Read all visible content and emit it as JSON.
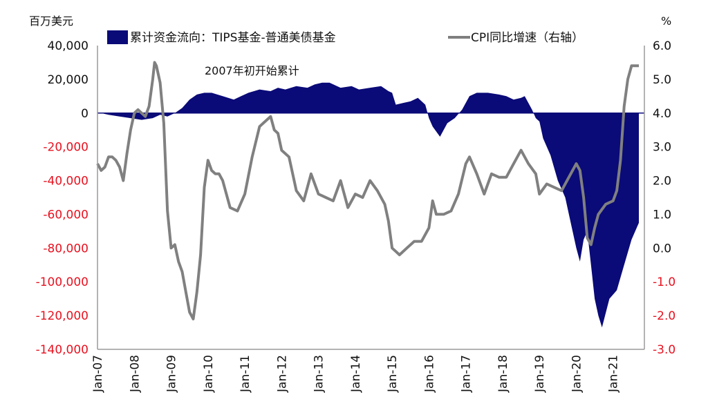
{
  "chart_data": {
    "type": "area+line",
    "left_axis_unit": "百万美元",
    "right_axis_unit": "%",
    "annotation": "2007年初开始累计",
    "left_ylim": [
      -140000,
      40000
    ],
    "right_ylim": [
      -3.0,
      6.0
    ],
    "left_ticks": [
      "40,000",
      "20,000",
      "0",
      "-20,000",
      "-40,000",
      "-60,000",
      "-80,000",
      "-100,000",
      "-120,000",
      "-140,000"
    ],
    "right_ticks": [
      "6.0",
      "5.0",
      "4.0",
      "3.0",
      "2.0",
      "1.0",
      "0.0",
      "-1.0",
      "-2.0",
      "-3.0"
    ],
    "x_ticks": [
      "Jan-07",
      "Jan-08",
      "Jan-09",
      "Jan-10",
      "Jan-11",
      "Jan-12",
      "Jan-13",
      "Jan-14",
      "Jan-15",
      "Jan-16",
      "Jan-17",
      "Jan-18",
      "Jan-19",
      "Jan-20",
      "Jan-21"
    ],
    "legend": {
      "flow": "累计资金流向：TIPS基金-普通美债基金",
      "cpi": "CPI同比增速（右轴）"
    },
    "colors": {
      "flow": "#0a0a78",
      "cpi": "#7f7f7f",
      "negative_tick": "#e8111f"
    },
    "series": [
      {
        "name": "累计资金流向：TIPS基金-普通美债基金",
        "axis": "left",
        "x": [
          2007.0,
          2007.3,
          2007.6,
          2007.9,
          2008.2,
          2008.5,
          2008.7,
          2008.9,
          2009.1,
          2009.3,
          2009.5,
          2009.7,
          2009.9,
          2010.1,
          2010.4,
          2010.7,
          2010.9,
          2011.1,
          2011.4,
          2011.7,
          2011.9,
          2012.1,
          2012.4,
          2012.7,
          2012.9,
          2013.1,
          2013.3,
          2013.6,
          2013.9,
          2014.1,
          2014.4,
          2014.7,
          2014.9,
          2015.0,
          2015.1,
          2015.3,
          2015.5,
          2015.7,
          2015.9,
          2016.0,
          2016.1,
          2016.3,
          2016.5,
          2016.7,
          2016.9,
          2017.1,
          2017.3,
          2017.6,
          2017.9,
          2018.1,
          2018.3,
          2018.5,
          2018.6,
          2018.8,
          2018.9,
          2019.0,
          2019.1,
          2019.3,
          2019.5,
          2019.7,
          2019.8,
          2020.0,
          2020.1,
          2020.2,
          2020.3,
          2020.4,
          2020.5,
          2020.6,
          2020.7,
          2020.9,
          2021.1,
          2021.3,
          2021.5,
          2021.7
        ],
        "values": [
          500,
          -1000,
          -2000,
          -3000,
          -4000,
          -3000,
          -1000,
          -2000,
          0,
          3000,
          8000,
          11000,
          12000,
          12000,
          10000,
          8000,
          10000,
          12000,
          14000,
          13000,
          15000,
          14000,
          16000,
          15000,
          17000,
          18000,
          18000,
          15000,
          16000,
          14000,
          15000,
          16000,
          13000,
          12000,
          5000,
          6000,
          7000,
          9000,
          5000,
          -3000,
          -8000,
          -14000,
          -6000,
          -3000,
          2000,
          10000,
          12000,
          12000,
          11000,
          10000,
          8000,
          9000,
          10000,
          2000,
          -3000,
          -5000,
          -15000,
          -25000,
          -40000,
          -50000,
          -60000,
          -80000,
          -88000,
          -75000,
          -70000,
          -90000,
          -110000,
          -120000,
          -127000,
          -110000,
          -105000,
          -90000,
          -75000,
          -65000
        ]
      },
      {
        "name": "CPI同比增速（右轴）",
        "axis": "right",
        "x": [
          2007.0,
          2007.1,
          2007.2,
          2007.3,
          2007.4,
          2007.5,
          2007.6,
          2007.7,
          2007.8,
          2007.9,
          2008.0,
          2008.1,
          2008.2,
          2008.3,
          2008.4,
          2008.5,
          2008.55,
          2008.6,
          2008.7,
          2008.8,
          2008.9,
          2009.0,
          2009.1,
          2009.2,
          2009.3,
          2009.4,
          2009.5,
          2009.6,
          2009.7,
          2009.8,
          2009.9,
          2010.0,
          2010.1,
          2010.2,
          2010.3,
          2010.4,
          2010.6,
          2010.8,
          2011.0,
          2011.2,
          2011.4,
          2011.6,
          2011.7,
          2011.8,
          2011.9,
          2012.0,
          2012.2,
          2012.4,
          2012.6,
          2012.8,
          2013.0,
          2013.2,
          2013.4,
          2013.6,
          2013.8,
          2014.0,
          2014.2,
          2014.4,
          2014.6,
          2014.8,
          2014.9,
          2015.0,
          2015.1,
          2015.2,
          2015.4,
          2015.6,
          2015.8,
          2016.0,
          2016.1,
          2016.2,
          2016.4,
          2016.6,
          2016.8,
          2017.0,
          2017.1,
          2017.3,
          2017.5,
          2017.7,
          2017.9,
          2018.1,
          2018.3,
          2018.5,
          2018.7,
          2018.9,
          2019.0,
          2019.2,
          2019.4,
          2019.6,
          2019.8,
          2020.0,
          2020.1,
          2020.2,
          2020.3,
          2020.4,
          2020.5,
          2020.6,
          2020.8,
          2021.0,
          2021.1,
          2021.2,
          2021.3,
          2021.4,
          2021.5,
          2021.6,
          2021.7
        ],
        "values": [
          2.5,
          2.3,
          2.4,
          2.7,
          2.7,
          2.6,
          2.4,
          2.0,
          2.8,
          3.5,
          4.0,
          4.1,
          4.0,
          3.9,
          4.2,
          5.0,
          5.5,
          5.4,
          4.9,
          3.7,
          1.1,
          0.0,
          0.1,
          -0.4,
          -0.7,
          -1.3,
          -1.9,
          -2.1,
          -1.3,
          -0.2,
          1.8,
          2.6,
          2.3,
          2.2,
          2.2,
          2.0,
          1.2,
          1.1,
          1.6,
          2.7,
          3.6,
          3.8,
          3.9,
          3.5,
          3.4,
          2.9,
          2.7,
          1.7,
          1.4,
          2.2,
          1.6,
          1.5,
          1.4,
          2.0,
          1.2,
          1.6,
          1.5,
          2.0,
          1.7,
          1.3,
          0.8,
          0.0,
          -0.1,
          -0.2,
          0.0,
          0.2,
          0.2,
          0.6,
          1.4,
          1.0,
          1.0,
          1.1,
          1.6,
          2.5,
          2.7,
          2.2,
          1.6,
          2.2,
          2.1,
          2.1,
          2.5,
          2.9,
          2.5,
          2.2,
          1.6,
          1.9,
          1.8,
          1.7,
          2.1,
          2.5,
          2.3,
          1.5,
          0.3,
          0.1,
          0.6,
          1.0,
          1.3,
          1.4,
          1.7,
          2.6,
          4.2,
          5.0,
          5.4,
          5.4,
          5.4
        ]
      }
    ]
  }
}
